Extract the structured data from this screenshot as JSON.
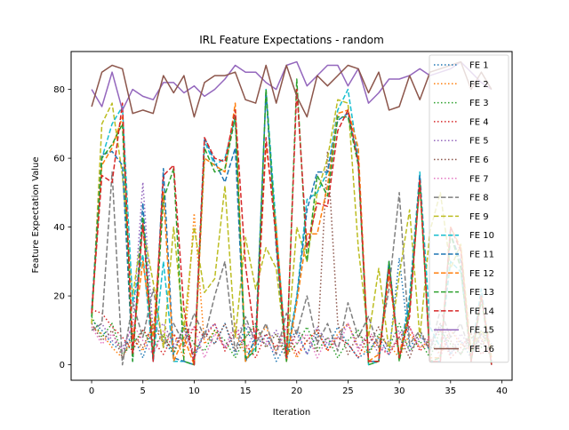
{
  "chart_data": {
    "type": "line",
    "title": "IRL Feature Expectations - random",
    "xlabel": "Iteration",
    "ylabel": "Feature Expectation Value",
    "xlim": [
      -2,
      41
    ],
    "ylim": [
      -4.5,
      91
    ],
    "xticks": [
      0,
      5,
      10,
      15,
      20,
      25,
      30,
      35,
      40
    ],
    "yticks": [
      0,
      20,
      40,
      60,
      80
    ],
    "grid": false,
    "legend_position": "upper right",
    "x": [
      0,
      1,
      2,
      3,
      4,
      5,
      6,
      7,
      8,
      9,
      10,
      11,
      12,
      13,
      14,
      15,
      16,
      17,
      18,
      19,
      20,
      21,
      22,
      23,
      24,
      25,
      26,
      27,
      28,
      29,
      30,
      31,
      32,
      33,
      34,
      35,
      36,
      37,
      38,
      39
    ],
    "series": [
      {
        "name": "FE 1",
        "color": "#1f77b4",
        "style": "dotted",
        "values": [
          13,
          10,
          6,
          4,
          9,
          2,
          11,
          7,
          3,
          12,
          2,
          10,
          6,
          12,
          3,
          11,
          5,
          9,
          1,
          6,
          10,
          3,
          9,
          5,
          11,
          6,
          2,
          4,
          8,
          3,
          31,
          5,
          9,
          4,
          12,
          3,
          7,
          2,
          10,
          6
        ]
      },
      {
        "name": "FE 2",
        "color": "#ff7f0e",
        "style": "dotted",
        "values": [
          11,
          9,
          5,
          2,
          8,
          4,
          12,
          6,
          9,
          2,
          44,
          6,
          10,
          5,
          9,
          3,
          7,
          11,
          4,
          8,
          2,
          7,
          10,
          4,
          9,
          12,
          5,
          3,
          8,
          6,
          2,
          9,
          5,
          7,
          3,
          10,
          6,
          4,
          8,
          2
        ]
      },
      {
        "name": "FE 3",
        "color": "#2ca02c",
        "style": "dotted",
        "values": [
          14,
          8,
          12,
          3,
          6,
          10,
          5,
          9,
          3,
          11,
          6,
          4,
          10,
          7,
          2,
          8,
          12,
          5,
          9,
          3,
          6,
          11,
          4,
          8,
          2,
          7,
          10,
          3,
          9,
          5,
          12,
          4,
          7,
          2,
          10,
          6,
          3,
          8,
          5,
          11
        ]
      },
      {
        "name": "FE 4",
        "color": "#d62728",
        "style": "dotted",
        "values": [
          16,
          15,
          11,
          8,
          4,
          10,
          7,
          3,
          9,
          5,
          11,
          8,
          12,
          4,
          10,
          6,
          2,
          9,
          5,
          11,
          3,
          7,
          10,
          4,
          8,
          6,
          2,
          9,
          5,
          3,
          8,
          11,
          4,
          7,
          10,
          2,
          5,
          9,
          3,
          6
        ]
      },
      {
        "name": "FE 5",
        "color": "#9467bd",
        "style": "dotted",
        "values": [
          10,
          12,
          7,
          5,
          11,
          53,
          9,
          12,
          6,
          10,
          2,
          9,
          12,
          5,
          9,
          12,
          8,
          6,
          10,
          4,
          9,
          3,
          11,
          6,
          8,
          12,
          5,
          9,
          3,
          7,
          10,
          4,
          8,
          6,
          11,
          3,
          9,
          5,
          7,
          2
        ]
      },
      {
        "name": "FE 6",
        "color": "#8c564b",
        "style": "dotted",
        "values": [
          12,
          7,
          10,
          2,
          9,
          5,
          12,
          8,
          4,
          11,
          3,
          9,
          6,
          12,
          4,
          8,
          11,
          5,
          9,
          2,
          10,
          7,
          4,
          62,
          12,
          3,
          9,
          6,
          11,
          4,
          8,
          2,
          10,
          5,
          12,
          7,
          3,
          9,
          6,
          11
        ]
      },
      {
        "name": "FE 7",
        "color": "#e377c2",
        "style": "dotted",
        "values": [
          11,
          6,
          9,
          4,
          12,
          7,
          3,
          10,
          5,
          8,
          11,
          2,
          9,
          5,
          12,
          4,
          10,
          7,
          3,
          11,
          6,
          9,
          2,
          8,
          5,
          12,
          4,
          10,
          6,
          3,
          9,
          11,
          5,
          8,
          2,
          10,
          7,
          4,
          9,
          5
        ]
      },
      {
        "name": "FE 8",
        "color": "#7f7f7f",
        "style": "dashed",
        "values": [
          10,
          12,
          56,
          0,
          18,
          8,
          22,
          5,
          12,
          6,
          15,
          8,
          20,
          30,
          4,
          14,
          6,
          12,
          3,
          15,
          9,
          20,
          6,
          12,
          4,
          18,
          8,
          14,
          5,
          22,
          50,
          6,
          10,
          4,
          16,
          8,
          12,
          3,
          9,
          5
        ]
      },
      {
        "name": "FE 9",
        "color": "#bcbd22",
        "style": "dashed",
        "values": [
          12,
          70,
          76,
          55,
          20,
          40,
          24,
          5,
          40,
          10,
          40,
          21,
          25,
          52,
          8,
          37,
          22,
          34,
          28,
          2,
          40,
          30,
          50,
          60,
          77,
          76,
          34,
          8,
          28,
          4,
          26,
          45,
          8,
          39,
          50,
          28,
          35,
          4,
          10,
          5
        ]
      },
      {
        "name": "FE 10",
        "color": "#17becf",
        "style": "dashed",
        "values": [
          14,
          60,
          70,
          75,
          18,
          32,
          1,
          30,
          1,
          1,
          0,
          65,
          58,
          60,
          72,
          1,
          5,
          80,
          40,
          2,
          20,
          48,
          50,
          56,
          74,
          80,
          60,
          0,
          1,
          30,
          2,
          20,
          56,
          11,
          5,
          30,
          27,
          3,
          22,
          0
        ]
      },
      {
        "name": "FE 11",
        "color": "#1f77b4",
        "style": "dashed",
        "values": [
          16,
          61,
          62,
          58,
          1,
          47,
          1,
          57,
          2,
          1,
          0,
          66,
          59,
          53,
          63,
          1,
          8,
          79,
          34,
          1,
          19,
          45,
          56,
          56,
          71,
          73,
          59,
          1,
          1,
          30,
          2,
          18,
          55,
          1,
          1,
          38,
          30,
          1,
          19,
          1
        ]
      },
      {
        "name": "FE 12",
        "color": "#ff7f0e",
        "style": "dashed",
        "values": [
          15,
          58,
          63,
          72,
          7,
          30,
          8,
          50,
          1,
          8,
          0,
          60,
          58,
          56,
          76,
          1,
          6,
          64,
          40,
          1,
          18,
          38,
          38,
          52,
          73,
          74,
          63,
          1,
          3,
          26,
          3,
          16,
          53,
          2,
          2,
          40,
          34,
          2,
          20,
          2
        ]
      },
      {
        "name": "FE 13",
        "color": "#2ca02c",
        "style": "dashed",
        "values": [
          14,
          60,
          64,
          70,
          1,
          43,
          2,
          48,
          57,
          1,
          0,
          63,
          56,
          57,
          72,
          2,
          4,
          80,
          36,
          1,
          83,
          30,
          55,
          49,
          72,
          72,
          58,
          0,
          1,
          30,
          1,
          16,
          53,
          1,
          2,
          38,
          28,
          1,
          19,
          0
        ]
      },
      {
        "name": "FE 14",
        "color": "#d62728",
        "style": "dashed",
        "values": [
          15,
          55,
          53,
          76,
          3,
          41,
          1,
          55,
          58,
          16,
          0,
          66,
          60,
          59,
          74,
          29,
          6,
          66,
          36,
          2,
          80,
          34,
          47,
          46,
          68,
          74,
          59,
          1,
          1,
          28,
          2,
          14,
          54,
          1,
          1,
          40,
          33,
          1,
          20,
          0
        ]
      },
      {
        "name": "FE 15",
        "color": "#9467bd",
        "style": "solid",
        "values": [
          80,
          75,
          85,
          74,
          80,
          78,
          77,
          82,
          82,
          79,
          81,
          78,
          80,
          83,
          87,
          85,
          85,
          82,
          80,
          87,
          88,
          81,
          84,
          87,
          87,
          81,
          86,
          76,
          79,
          83,
          83,
          84,
          86,
          84,
          85,
          86,
          88,
          85,
          82,
          80
        ]
      },
      {
        "name": "FE 16",
        "color": "#8c564b",
        "style": "solid",
        "values": [
          75,
          85,
          87,
          86,
          73,
          74,
          73,
          84,
          79,
          84,
          72,
          82,
          84,
          84,
          85,
          77,
          76,
          87,
          76,
          87,
          78,
          72,
          84,
          81,
          84,
          87,
          86,
          79,
          85,
          74,
          75,
          84,
          77,
          85,
          86,
          87,
          88,
          80,
          85,
          80
        ]
      }
    ]
  }
}
